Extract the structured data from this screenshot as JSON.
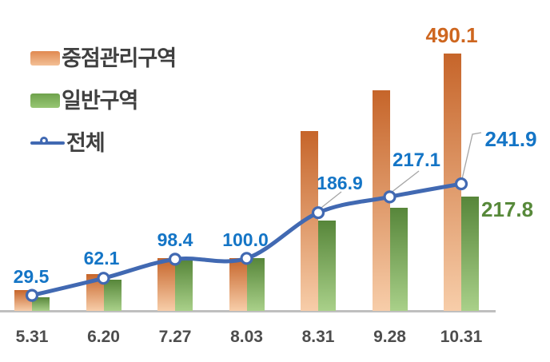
{
  "legend": {
    "items": [
      {
        "label": "중점관리구역",
        "swatch": "orange-gradient-bar"
      },
      {
        "label": "일반구역",
        "swatch": "green-gradient-bar"
      },
      {
        "label": "전체",
        "swatch": "blue-line-with-circle-marker"
      }
    ]
  },
  "colors": {
    "bar_priority_top": "#C6652A",
    "bar_priority_bottom": "#F7CDA9",
    "bar_general_top": "#57863A",
    "bar_general_bottom": "#A9D089",
    "swatch_priority_top": "#E08A50",
    "swatch_priority_bottom": "#F3C096",
    "swatch_general_top": "#6FA24C",
    "swatch_general_bottom": "#97C674",
    "line_blue": "#4169B2",
    "label_blue": "#1475C6",
    "label_orange": "#CE661F",
    "label_green": "#57893A",
    "axis_label": "#4D4D4D",
    "legend_text": "#404040",
    "axis_line": "#BFBFBF",
    "leader": "#A6A6A6"
  },
  "chart_data": {
    "type": "combo",
    "categories": [
      "5.31",
      "6.20",
      "7.27",
      "8.03",
      "8.31",
      "9.28",
      "10.31"
    ],
    "series": [
      {
        "name": "중점관리구역",
        "type": "bar",
        "values": [
          40,
          70,
          100,
          101,
          343,
          420,
          490.1
        ],
        "end_label": "490.1"
      },
      {
        "name": "일반구역",
        "type": "bar",
        "values": [
          26,
          60,
          98,
          100,
          172,
          196,
          217.8
        ],
        "end_label": "217.8"
      },
      {
        "name": "전체",
        "type": "line",
        "values": [
          29.5,
          62.1,
          98.4,
          100.0,
          186.9,
          217.1,
          241.9
        ],
        "point_labels": [
          "29.5",
          "62.1",
          "98.4",
          "100.0",
          "186.9",
          "217.1",
          "241.9"
        ]
      }
    ],
    "ylim": [
      0,
      548
    ],
    "grid": false,
    "legend_position": "top-left",
    "y_axis_visible": false,
    "x_axis_labels_visible": true
  }
}
